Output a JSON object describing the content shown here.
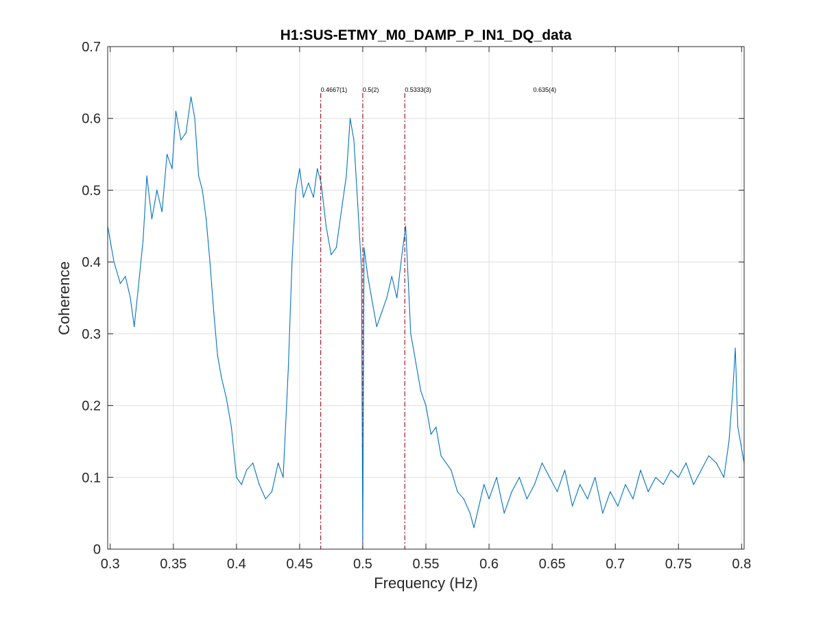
{
  "chart_data": {
    "type": "line",
    "title": "H1:SUS-ETMY_M0_DAMP_P_IN1_DQ_data",
    "xlabel": "Frequency (Hz)",
    "ylabel": "Coherence",
    "xlim": [
      0.298,
      0.802
    ],
    "ylim": [
      0,
      0.7
    ],
    "xticks": [
      0.3,
      0.35,
      0.4,
      0.45,
      0.5,
      0.55,
      0.6,
      0.65,
      0.7,
      0.75,
      0.8
    ],
    "xtick_labels": [
      "0.3",
      "0.35",
      "0.4",
      "0.45",
      "0.5",
      "0.55",
      "0.6",
      "0.65",
      "0.7",
      "0.75",
      "0.8"
    ],
    "yticks": [
      0,
      0.1,
      0.2,
      0.3,
      0.4,
      0.5,
      0.6,
      0.7
    ],
    "ytick_labels": [
      "0",
      "0.1",
      "0.2",
      "0.3",
      "0.4",
      "0.5",
      "0.6",
      "0.7"
    ],
    "grid": true,
    "colors": {
      "series": "#0072BD",
      "marker": "#A2142F",
      "grid": "#DFDFDF",
      "axis": "#262626"
    },
    "markers": [
      {
        "x": 0.4667,
        "label": "0.4667(1)",
        "drawn": true
      },
      {
        "x": 0.5,
        "label": "0.5(2)",
        "drawn": true
      },
      {
        "x": 0.5333,
        "label": "0.5333(3)",
        "drawn": true
      },
      {
        "x": 0.635,
        "label": "0.635(4)",
        "drawn": false
      }
    ],
    "marker_label_y": 0.64,
    "series": [
      {
        "x": [
          0.298,
          0.303,
          0.308,
          0.312,
          0.316,
          0.319,
          0.322,
          0.326,
          0.329,
          0.333,
          0.337,
          0.341,
          0.345,
          0.349,
          0.352,
          0.356,
          0.36,
          0.364,
          0.367,
          0.37,
          0.373,
          0.376,
          0.379,
          0.382,
          0.385,
          0.388,
          0.392,
          0.396,
          0.4,
          0.404,
          0.408,
          0.413,
          0.418,
          0.423,
          0.428,
          0.433,
          0.437,
          0.441,
          0.444,
          0.447,
          0.45,
          0.453,
          0.457,
          0.461,
          0.464,
          0.467,
          0.471,
          0.475,
          0.479,
          0.483,
          0.487,
          0.49,
          0.493,
          0.496,
          0.499,
          0.5,
          0.501,
          0.504,
          0.507,
          0.511,
          0.515,
          0.519,
          0.523,
          0.527,
          0.531,
          0.534,
          0.538,
          0.542,
          0.546,
          0.55,
          0.554,
          0.558,
          0.562,
          0.566,
          0.57,
          0.575,
          0.58,
          0.585,
          0.588,
          0.592,
          0.596,
          0.6,
          0.606,
          0.612,
          0.618,
          0.624,
          0.63,
          0.636,
          0.642,
          0.648,
          0.654,
          0.66,
          0.666,
          0.672,
          0.678,
          0.684,
          0.69,
          0.696,
          0.702,
          0.708,
          0.714,
          0.72,
          0.726,
          0.732,
          0.738,
          0.744,
          0.75,
          0.756,
          0.762,
          0.768,
          0.774,
          0.78,
          0.786,
          0.79,
          0.793,
          0.795,
          0.797,
          0.799,
          0.802
        ],
        "y": [
          0.45,
          0.4,
          0.37,
          0.38,
          0.35,
          0.31,
          0.36,
          0.43,
          0.52,
          0.46,
          0.5,
          0.47,
          0.55,
          0.53,
          0.61,
          0.57,
          0.58,
          0.63,
          0.6,
          0.52,
          0.5,
          0.46,
          0.4,
          0.33,
          0.27,
          0.24,
          0.21,
          0.17,
          0.1,
          0.09,
          0.11,
          0.12,
          0.09,
          0.07,
          0.08,
          0.12,
          0.1,
          0.25,
          0.4,
          0.5,
          0.53,
          0.49,
          0.51,
          0.49,
          0.53,
          0.51,
          0.45,
          0.41,
          0.42,
          0.47,
          0.52,
          0.6,
          0.57,
          0.48,
          0.39,
          0.01,
          0.42,
          0.38,
          0.35,
          0.31,
          0.33,
          0.35,
          0.38,
          0.35,
          0.41,
          0.45,
          0.3,
          0.26,
          0.22,
          0.2,
          0.16,
          0.17,
          0.13,
          0.12,
          0.11,
          0.08,
          0.07,
          0.05,
          0.03,
          0.06,
          0.09,
          0.07,
          0.1,
          0.05,
          0.08,
          0.1,
          0.07,
          0.09,
          0.12,
          0.1,
          0.08,
          0.11,
          0.06,
          0.09,
          0.07,
          0.1,
          0.05,
          0.08,
          0.06,
          0.09,
          0.07,
          0.11,
          0.08,
          0.1,
          0.09,
          0.11,
          0.1,
          0.12,
          0.09,
          0.11,
          0.13,
          0.12,
          0.1,
          0.15,
          0.22,
          0.28,
          0.17,
          0.15,
          0.12
        ]
      }
    ]
  }
}
